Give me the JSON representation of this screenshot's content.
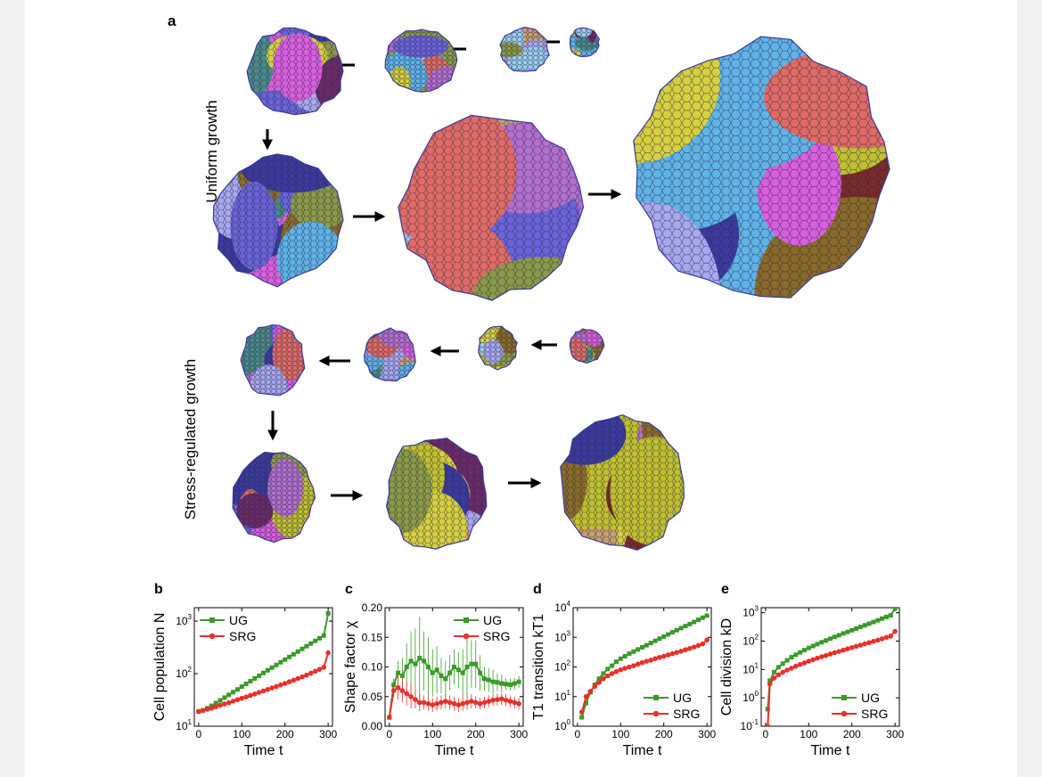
{
  "figure": {
    "panel_a": {
      "letter": "a",
      "rows": [
        {
          "label": "Uniform growth"
        },
        {
          "label": "Stress-regulated growth"
        }
      ]
    }
  },
  "palette": [
    "#e06b66",
    "#6a63d9",
    "#8a9a48",
    "#c8a070",
    "#5fb3e8",
    "#d95fe0",
    "#b36fd0",
    "#7a2a2a",
    "#4a8a8a",
    "#a8a8f0",
    "#d6d040",
    "#8a6a2a",
    "#3a3aa0",
    "#6a2a6a",
    "#c0c030",
    "#9ad0f0"
  ],
  "chart_data": [
    {
      "letter": "b",
      "type": "line",
      "log_y": true,
      "xlabel": "Time t",
      "ylabel": "Cell population N",
      "xlim": [
        -10,
        310
      ],
      "ylim": [
        10,
        1800
      ],
      "x_ticks": [
        "0",
        "100",
        "200",
        "300"
      ],
      "y_ticks": [
        {
          "value": 10,
          "base": "10",
          "exp": "1"
        },
        {
          "value": 100,
          "base": "10",
          "exp": "2"
        },
        {
          "value": 1000,
          "base": "10",
          "exp": "3"
        }
      ],
      "legend_position": "top-left",
      "series": [
        {
          "name": "UG",
          "color": "#3a9a2a",
          "marker": "square",
          "x": [
            0,
            10,
            20,
            30,
            40,
            50,
            60,
            70,
            80,
            90,
            100,
            110,
            120,
            130,
            140,
            150,
            160,
            170,
            180,
            190,
            200,
            210,
            220,
            230,
            240,
            250,
            260,
            270,
            280,
            290,
            300
          ],
          "y": [
            19,
            20,
            22,
            24.5,
            27.5,
            31,
            35,
            39.5,
            44.5,
            50,
            56.5,
            64,
            72,
            81,
            91,
            103,
            116,
            130,
            146,
            165,
            185,
            208,
            234,
            263,
            296,
            333,
            374,
            420,
            472,
            531,
            1400
          ],
          "y_err": []
        },
        {
          "name": "SRG",
          "color": "#e8302a",
          "marker": "circle",
          "x": [
            0,
            10,
            20,
            30,
            40,
            50,
            60,
            70,
            80,
            90,
            100,
            110,
            120,
            130,
            140,
            150,
            160,
            170,
            180,
            190,
            200,
            210,
            220,
            230,
            240,
            250,
            260,
            270,
            280,
            290,
            300
          ],
          "y": [
            19,
            20,
            21,
            22,
            23.5,
            25,
            26.5,
            28,
            30,
            32,
            34,
            36,
            38.5,
            41,
            44,
            47,
            50,
            53.5,
            57,
            61,
            65,
            70,
            75,
            81,
            87,
            94,
            102,
            111,
            121,
            132,
            250
          ]
        }
      ]
    },
    {
      "letter": "c",
      "type": "line",
      "log_y": false,
      "xlabel": "Time t",
      "ylabel": "Shape factor χ",
      "xlim": [
        -10,
        310
      ],
      "ylim": [
        0,
        0.2
      ],
      "x_ticks": [
        "0",
        "100",
        "200",
        "300"
      ],
      "y_ticks": [
        {
          "value": 0,
          "label": "0.00"
        },
        {
          "value": 0.05,
          "label": "0.05"
        },
        {
          "value": 0.1,
          "label": "0.10"
        },
        {
          "value": 0.15,
          "label": "0.15"
        },
        {
          "value": 0.2,
          "label": "0.20"
        }
      ],
      "legend_position": "top-right",
      "series": [
        {
          "name": "UG",
          "color": "#3a9a2a",
          "marker": "square",
          "x": [
            0,
            10,
            20,
            30,
            40,
            50,
            60,
            70,
            80,
            90,
            100,
            110,
            120,
            130,
            140,
            150,
            160,
            170,
            180,
            190,
            200,
            210,
            220,
            230,
            240,
            250,
            260,
            270,
            280,
            290,
            300
          ],
          "y": [
            0.015,
            0.07,
            0.09,
            0.085,
            0.1,
            0.11,
            0.105,
            0.115,
            0.11,
            0.1,
            0.09,
            0.095,
            0.085,
            0.08,
            0.09,
            0.1,
            0.095,
            0.09,
            0.1,
            0.105,
            0.105,
            0.09,
            0.08,
            0.078,
            0.075,
            0.074,
            0.072,
            0.071,
            0.07,
            0.072,
            0.075
          ],
          "y_err": [
            0,
            0.01,
            0.02,
            0.03,
            0.04,
            0.05,
            0.06,
            0.07,
            0.05,
            0.05,
            0.04,
            0.04,
            0.03,
            0.03,
            0.03,
            0.03,
            0.03,
            0.04,
            0.05,
            0.04,
            0.04,
            0.03,
            0.02,
            0.02,
            0.02,
            0.015,
            0.015,
            0.01,
            0.01,
            0.01,
            0.01
          ]
        },
        {
          "name": "SRG",
          "color": "#e8302a",
          "marker": "circle",
          "x": [
            0,
            10,
            20,
            30,
            40,
            50,
            60,
            70,
            80,
            90,
            100,
            110,
            120,
            130,
            140,
            150,
            160,
            170,
            180,
            190,
            200,
            210,
            220,
            230,
            240,
            250,
            260,
            270,
            280,
            290,
            300
          ],
          "y": [
            0.015,
            0.06,
            0.065,
            0.06,
            0.055,
            0.05,
            0.045,
            0.04,
            0.04,
            0.038,
            0.036,
            0.038,
            0.04,
            0.042,
            0.04,
            0.038,
            0.036,
            0.038,
            0.04,
            0.042,
            0.04,
            0.038,
            0.04,
            0.042,
            0.044,
            0.045,
            0.046,
            0.044,
            0.042,
            0.04,
            0.038
          ],
          "y_err": [
            0,
            0.01,
            0.02,
            0.02,
            0.02,
            0.02,
            0.015,
            0.015,
            0.012,
            0.012,
            0.012,
            0.012,
            0.012,
            0.012,
            0.012,
            0.012,
            0.012,
            0.012,
            0.012,
            0.012,
            0.01,
            0.01,
            0.01,
            0.01,
            0.01,
            0.01,
            0.01,
            0.01,
            0.01,
            0.01,
            0.01
          ]
        }
      ]
    },
    {
      "letter": "d",
      "type": "line",
      "log_y": true,
      "xlabel": "Time t",
      "ylabel": "T1 transition kT1",
      "xlim": [
        -10,
        310
      ],
      "ylim": [
        1,
        10000
      ],
      "x_ticks": [
        "0",
        "100",
        "200",
        "300"
      ],
      "y_ticks": [
        {
          "value": 1,
          "base": "10",
          "exp": "0"
        },
        {
          "value": 10,
          "base": "10",
          "exp": "1"
        },
        {
          "value": 100,
          "base": "10",
          "exp": "2"
        },
        {
          "value": 1000,
          "base": "10",
          "exp": "3"
        },
        {
          "value": 10000,
          "base": "10",
          "exp": "4"
        }
      ],
      "legend_position": "bottom-right",
      "series": [
        {
          "name": "UG",
          "color": "#3a9a2a",
          "marker": "square",
          "x": [
            10,
            20,
            30,
            40,
            50,
            60,
            70,
            80,
            90,
            100,
            110,
            120,
            130,
            140,
            150,
            160,
            170,
            180,
            190,
            200,
            210,
            220,
            230,
            240,
            250,
            260,
            270,
            280,
            290,
            300
          ],
          "y": [
            2,
            6,
            14,
            25,
            40,
            60,
            85,
            110,
            150,
            190,
            230,
            280,
            330,
            390,
            460,
            540,
            640,
            760,
            900,
            1060,
            1250,
            1480,
            1750,
            2050,
            2400,
            2800,
            3300,
            3900,
            4600,
            5400
          ]
        },
        {
          "name": "SRG",
          "color": "#e8302a",
          "marker": "circle",
          "x": [
            10,
            20,
            30,
            40,
            50,
            60,
            70,
            80,
            90,
            100,
            110,
            120,
            130,
            140,
            150,
            160,
            170,
            180,
            190,
            200,
            210,
            220,
            230,
            240,
            250,
            260,
            270,
            280,
            290,
            300
          ],
          "y": [
            3,
            10,
            15,
            22,
            30,
            40,
            50,
            60,
            70,
            80,
            90,
            100,
            110,
            125,
            140,
            155,
            170,
            190,
            210,
            230,
            255,
            280,
            310,
            340,
            380,
            420,
            470,
            530,
            600,
            820
          ]
        }
      ]
    },
    {
      "letter": "e",
      "type": "line",
      "log_y": true,
      "xlabel": "Time t",
      "ylabel": "Cell division kD",
      "xlim": [
        -10,
        310
      ],
      "ylim": [
        0.1,
        1500
      ],
      "x_ticks": [
        "0",
        "100",
        "200",
        "300"
      ],
      "y_ticks": [
        {
          "value": 0.1,
          "base": "10",
          "exp": "-1"
        },
        {
          "value": 1,
          "base": "10",
          "exp": "0"
        },
        {
          "value": 10,
          "base": "10",
          "exp": "1"
        },
        {
          "value": 100,
          "base": "10",
          "exp": "2"
        },
        {
          "value": 1000,
          "base": "10",
          "exp": "3"
        }
      ],
      "legend_position": "bottom-right",
      "series": [
        {
          "name": "UG",
          "color": "#3a9a2a",
          "marker": "square",
          "x": [
            5,
            10,
            20,
            30,
            40,
            50,
            60,
            70,
            80,
            90,
            100,
            110,
            120,
            130,
            140,
            150,
            160,
            170,
            180,
            190,
            200,
            210,
            220,
            230,
            240,
            250,
            260,
            270,
            280,
            290,
            300
          ],
          "y": [
            0.4,
            4,
            8,
            12,
            16,
            21,
            27,
            33,
            40,
            48,
            57,
            67,
            78,
            91,
            105,
            121,
            140,
            160,
            185,
            210,
            240,
            275,
            315,
            360,
            410,
            470,
            540,
            620,
            710,
            810,
            1400
          ]
        },
        {
          "name": "SRG",
          "color": "#e8302a",
          "marker": "circle",
          "x": [
            5,
            10,
            20,
            30,
            40,
            50,
            60,
            70,
            80,
            90,
            100,
            110,
            120,
            130,
            140,
            150,
            160,
            170,
            180,
            190,
            200,
            210,
            220,
            230,
            240,
            250,
            260,
            270,
            280,
            290,
            300
          ],
          "y": [
            0.1,
            3,
            5,
            6.5,
            8,
            9.5,
            11,
            13,
            15,
            17,
            19.5,
            22,
            25,
            28,
            31,
            35,
            39,
            43,
            48,
            53,
            59,
            65,
            72,
            80,
            88,
            98,
            108,
            120,
            135,
            150,
            220
          ]
        }
      ]
    }
  ]
}
